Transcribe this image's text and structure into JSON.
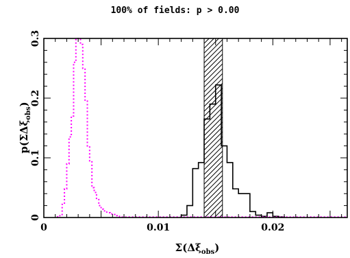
{
  "chart_data": {
    "type": "histogram",
    "title": "100% of fields: p > 0.00",
    "xlabel": "Σ(Δξ",
    "xlabel_sub": "obs",
    "xlabel_close": ")",
    "ylabel": "p(ΣΔξ",
    "ylabel_sub": "obs",
    "ylabel_close": ")",
    "xlim": [
      0,
      0.0265
    ],
    "ylim": [
      0,
      0.3
    ],
    "xticks": [
      {
        "value": 0,
        "label": "0"
      },
      {
        "value": 0.01,
        "label": "0.01"
      },
      {
        "value": 0.02,
        "label": "0.02"
      }
    ],
    "yticks": [
      {
        "value": 0,
        "label": "0"
      },
      {
        "value": 0.1,
        "label": "0.1"
      },
      {
        "value": 0.2,
        "label": "0.2"
      },
      {
        "value": 0.3,
        "label": "0.3"
      }
    ],
    "observed_band": {
      "x0": 0.014,
      "x1": 0.0156,
      "style": "hatched"
    },
    "series": [
      {
        "style": "dotted",
        "color": "#ff00ff",
        "bin_width": 0.0002,
        "bins_start": [
          0.0012,
          0.0014,
          0.0016,
          0.0018,
          0.002,
          0.0022,
          0.0024,
          0.0026,
          0.0028,
          0.003,
          0.0032,
          0.0034,
          0.0036,
          0.0038,
          0.004,
          0.0042,
          0.0044,
          0.0046,
          0.0048,
          0.005,
          0.0052,
          0.0054,
          0.0056,
          0.0058,
          0.006,
          0.0062,
          0.0064,
          0.0066
        ],
        "values": [
          0.003,
          0.005,
          0.022,
          0.048,
          0.09,
          0.135,
          0.17,
          0.26,
          0.3,
          0.3,
          0.29,
          0.25,
          0.195,
          0.12,
          0.095,
          0.05,
          0.042,
          0.032,
          0.02,
          0.014,
          0.011,
          0.009,
          0.008,
          0.006,
          0.005,
          0.003,
          0.002,
          0.001
        ]
      },
      {
        "style": "solid",
        "color": "#000000",
        "bin_width": 0.0005,
        "bins_start": [
          0.012,
          0.0125,
          0.013,
          0.0135,
          0.014,
          0.0145,
          0.015,
          0.0155,
          0.016,
          0.0165,
          0.017,
          0.0175,
          0.018,
          0.0185,
          0.019,
          0.0195,
          0.02,
          0.0205
        ],
        "values": [
          0.004,
          0.02,
          0.082,
          0.092,
          0.165,
          0.19,
          0.222,
          0.12,
          0.092,
          0.048,
          0.04,
          0.04,
          0.01,
          0.004,
          0.002,
          0.008,
          0.002,
          0.001
        ]
      }
    ]
  }
}
